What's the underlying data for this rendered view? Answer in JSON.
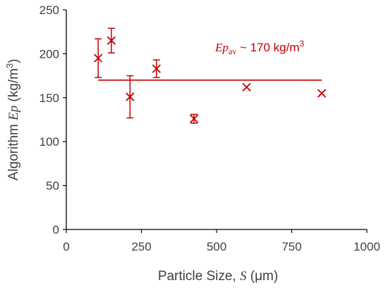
{
  "colors": {
    "series": "#c00000",
    "axis": "#000000",
    "text": "#404040"
  },
  "chart_data": {
    "type": "scatter",
    "title": "",
    "xlabel": {
      "prefix": "Particle Size, ",
      "symbol": "S",
      "suffix": " (μm)"
    },
    "ylabel": {
      "prefix": "Algorithm ",
      "symbol": "Ep",
      "suffix": " (kg/m",
      "sup": "3",
      "close": ")"
    },
    "xlim": [
      0,
      1000
    ],
    "ylim": [
      0,
      250
    ],
    "xticks": [
      0,
      250,
      500,
      750,
      1000
    ],
    "yticks": [
      0,
      50,
      100,
      150,
      200,
      250
    ],
    "grid": false,
    "marker": "x",
    "points": [
      {
        "x": 106,
        "y": 195,
        "err_low": 22,
        "err_high": 22
      },
      {
        "x": 150,
        "y": 215,
        "err_low": 14,
        "err_high": 14
      },
      {
        "x": 212,
        "y": 151,
        "err_low": 24,
        "err_high": 24
      },
      {
        "x": 300,
        "y": 183,
        "err_low": 10,
        "err_high": 10
      },
      {
        "x": 425,
        "y": 126,
        "err_low": 5,
        "err_high": 5
      },
      {
        "x": 600,
        "y": 162,
        "err_low": 0,
        "err_high": 0
      },
      {
        "x": 850,
        "y": 155,
        "err_low": 0,
        "err_high": 0
      }
    ],
    "average_line": {
      "x": [
        106,
        850
      ],
      "y": 170
    },
    "annotation": {
      "symbol": "Ep",
      "subscript": "av",
      "text": " ~ 170 kg/m",
      "sup": "3"
    }
  }
}
